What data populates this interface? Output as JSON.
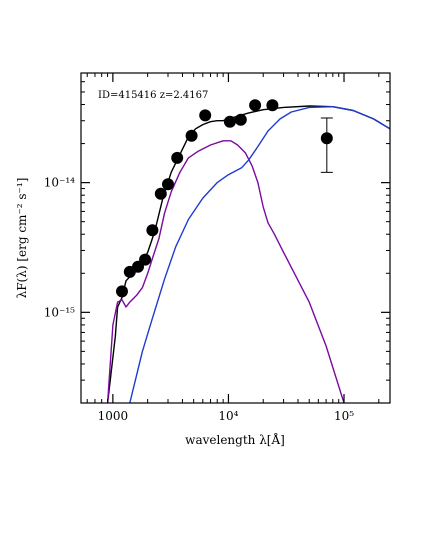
{
  "chart_data": {
    "type": "line",
    "annotation": "ID=415416 z=2.4167",
    "xlabel": "wavelength λ[Å]",
    "ylabel": "λF(λ) [erg cm⁻² s⁻¹]",
    "x_scale": "log",
    "y_scale": "log",
    "xlim": [
      530,
      250000
    ],
    "ylim": [
      2e-16,
      7e-14
    ],
    "x_ticks": [
      {
        "value": 1000,
        "label": "1000"
      },
      {
        "value": 10000,
        "label": "10⁴"
      },
      {
        "value": 100000,
        "label": "10⁵"
      }
    ],
    "y_ticks": [
      {
        "value": 1e-14,
        "label": "10⁻¹⁴"
      },
      {
        "value": 1e-15,
        "label": "10⁻¹⁵"
      }
    ],
    "grid": false,
    "series": [
      {
        "kind": "line",
        "color": "#000000",
        "points": [
          [
            900,
            2e-16
          ],
          [
            1050,
            6.5e-16
          ],
          [
            1100,
            1.1e-15
          ],
          [
            1200,
            1.3e-15
          ],
          [
            1300,
            1.75e-15
          ],
          [
            1500,
            2e-15
          ],
          [
            1700,
            2.3e-15
          ],
          [
            2000,
            2.9e-15
          ],
          [
            2300,
            4.2e-15
          ],
          [
            2700,
            7.5e-15
          ],
          [
            3200,
            1.2e-14
          ],
          [
            3800,
            1.65e-14
          ],
          [
            4500,
            2.25e-14
          ],
          [
            5200,
            2.6e-14
          ],
          [
            6000,
            2.8e-14
          ],
          [
            7000,
            2.95e-14
          ],
          [
            8000,
            3e-14
          ],
          [
            9000,
            3e-14
          ],
          [
            10000,
            3.1e-14
          ],
          [
            12000,
            3.25e-14
          ],
          [
            15000,
            3.45e-14
          ],
          [
            20000,
            3.65e-14
          ],
          [
            30000,
            3.8e-14
          ],
          [
            50000,
            3.9e-14
          ],
          [
            80000,
            3.85e-14
          ],
          [
            120000,
            3.6e-14
          ],
          [
            180000,
            3.1e-14
          ],
          [
            250000,
            2.6e-14
          ]
        ]
      },
      {
        "kind": "line",
        "color": "#7a0aa0",
        "points": [
          [
            900,
            2e-16
          ],
          [
            1000,
            8e-16
          ],
          [
            1100,
            1.2e-15
          ],
          [
            1200,
            1.25e-15
          ],
          [
            1300,
            1.1e-15
          ],
          [
            1400,
            1.2e-15
          ],
          [
            1600,
            1.35e-15
          ],
          [
            1800,
            1.55e-15
          ],
          [
            2000,
            2e-15
          ],
          [
            2200,
            2.6e-15
          ],
          [
            2500,
            3.7e-15
          ],
          [
            2800,
            5.8e-15
          ],
          [
            3200,
            8.5e-15
          ],
          [
            3800,
            1.2e-14
          ],
          [
            4500,
            1.55e-14
          ],
          [
            5500,
            1.75e-14
          ],
          [
            7000,
            1.95e-14
          ],
          [
            9000,
            2.1e-14
          ],
          [
            10500,
            2.1e-14
          ],
          [
            12000,
            1.95e-14
          ],
          [
            14000,
            1.7e-14
          ],
          [
            16000,
            1.35e-14
          ],
          [
            18000,
            1e-14
          ],
          [
            20000,
            6.5e-15
          ],
          [
            22000,
            4.9e-15
          ],
          [
            25000,
            4e-15
          ],
          [
            30000,
            2.9e-15
          ],
          [
            50000,
            1.2e-15
          ],
          [
            70000,
            5.5e-16
          ],
          [
            100000,
            2e-16
          ]
        ]
      },
      {
        "kind": "line",
        "color": "#1f3bd0",
        "points": [
          [
            1400,
            2e-16
          ],
          [
            1800,
            5e-16
          ],
          [
            2200,
            9e-16
          ],
          [
            2800,
            1.8e-15
          ],
          [
            3500,
            3.2e-15
          ],
          [
            4500,
            5.2e-15
          ],
          [
            6000,
            7.6e-15
          ],
          [
            8000,
            1e-14
          ],
          [
            10000,
            1.15e-14
          ],
          [
            13000,
            1.3e-14
          ],
          [
            15000,
            1.5e-14
          ],
          [
            18000,
            1.9e-14
          ],
          [
            22000,
            2.5e-14
          ],
          [
            28000,
            3.1e-14
          ],
          [
            35000,
            3.5e-14
          ],
          [
            50000,
            3.8e-14
          ],
          [
            80000,
            3.85e-14
          ],
          [
            120000,
            3.6e-14
          ],
          [
            180000,
            3.1e-14
          ],
          [
            250000,
            2.6e-14
          ]
        ]
      },
      {
        "kind": "scatter",
        "color": "#000000",
        "points": [
          [
            1200,
            1.45e-15
          ],
          [
            1400,
            2.05e-15
          ],
          [
            1650,
            2.25e-15
          ],
          [
            1900,
            2.55e-15
          ],
          [
            2200,
            4.3e-15
          ],
          [
            2600,
            8.2e-15
          ],
          [
            3000,
            9.7e-15
          ],
          [
            3600,
            1.55e-14
          ],
          [
            4800,
            2.3e-14
          ],
          [
            6300,
            3.3e-14
          ],
          [
            10300,
            2.95e-14
          ],
          [
            12800,
            3.05e-14
          ],
          [
            17000,
            3.95e-14
          ],
          [
            24000,
            3.95e-14
          ]
        ]
      },
      {
        "kind": "errorbar",
        "color": "#000000",
        "points": [
          [
            71000,
            2.2e-14,
            1.2e-14,
            3.15e-14
          ]
        ]
      }
    ]
  }
}
